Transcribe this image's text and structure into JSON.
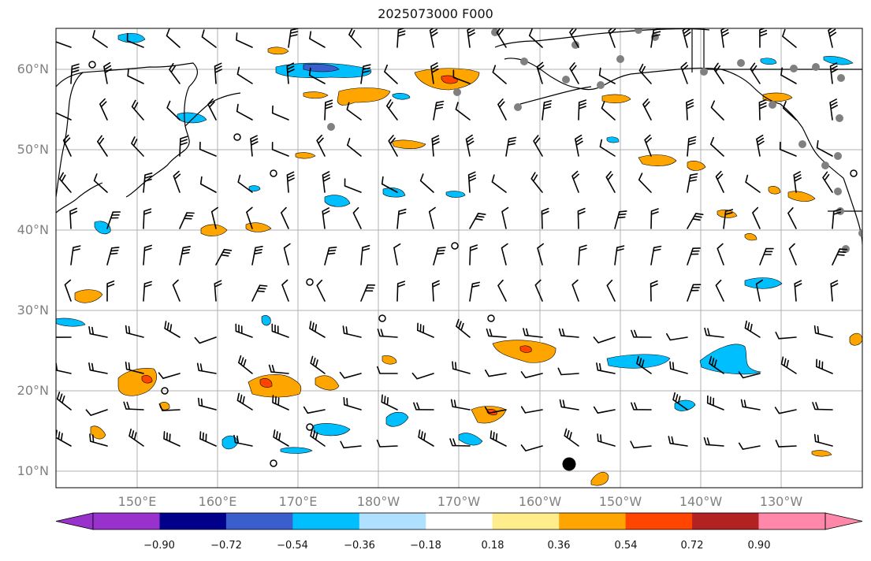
{
  "title": "2025073000 F000",
  "lat_labels": [
    "60°N",
    "50°N",
    "40°N",
    "30°N",
    "20°N",
    "10°N"
  ],
  "lon_labels": [
    "150°E",
    "160°E",
    "170°E",
    "180°W",
    "170°W",
    "160°W",
    "150°W",
    "140°W",
    "130°W"
  ],
  "colorbar": {
    "ticks": [
      "−0.90",
      "−0.72",
      "−0.54",
      "−0.36",
      "−0.18",
      "0.18",
      "0.36",
      "0.54",
      "0.72",
      "0.90"
    ],
    "colors": [
      "#9932cc",
      "#00008b",
      "#3a5fcd",
      "#00bfff",
      "#b0e0ff",
      "#ffffff",
      "#ffec8b",
      "#ffa500",
      "#ff4500",
      "#b22222",
      "#ff88aa"
    ]
  },
  "legend_colors": {
    "land_dots": "#808080",
    "wind_barb": "#000000",
    "coast": "#000000",
    "grid": "#b0b0b0"
  }
}
